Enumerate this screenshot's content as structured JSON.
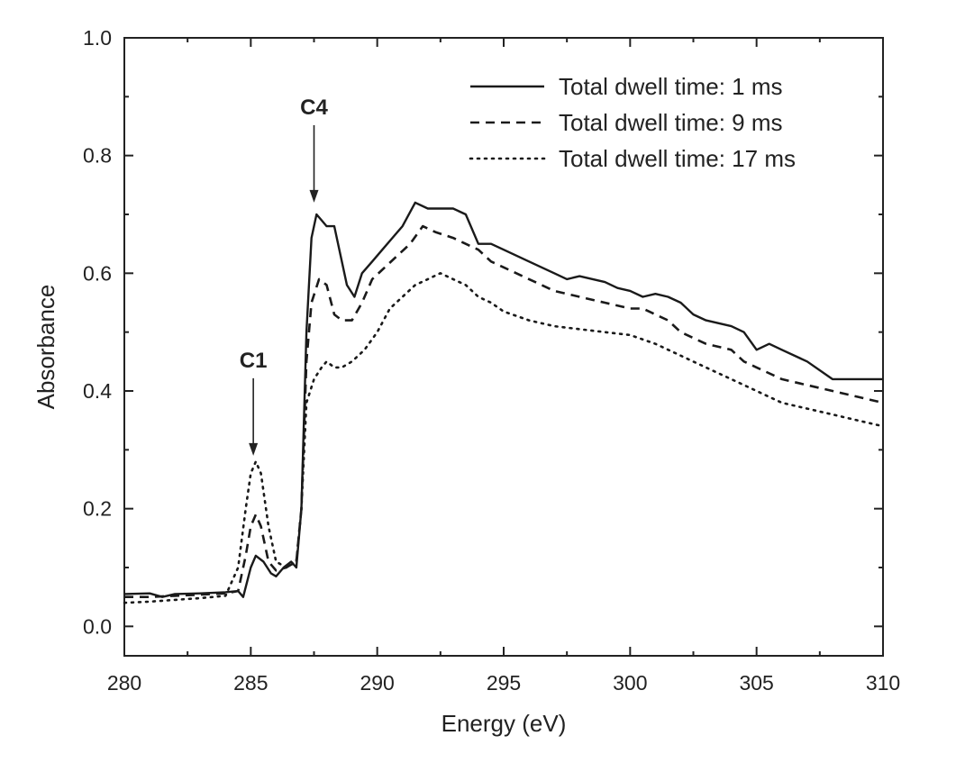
{
  "chart_data": {
    "type": "line",
    "xlabel": "Energy (eV)",
    "ylabel": "Absorbance",
    "xlim": [
      280,
      310
    ],
    "ylim": [
      -0.05,
      1.0
    ],
    "x_ticks": [
      280,
      285,
      290,
      295,
      300,
      305,
      310
    ],
    "y_ticks": [
      0.0,
      0.2,
      0.4,
      0.6,
      0.8,
      1.0
    ],
    "x_tick_labels": [
      "280",
      "285",
      "290",
      "295",
      "300",
      "305",
      "310"
    ],
    "y_tick_labels": [
      "0.0",
      "0.2",
      "0.4",
      "0.6",
      "0.8",
      "1.0"
    ],
    "legend_position": "top-right",
    "grid": false,
    "series": [
      {
        "name": "Total dwell time: 1 ms",
        "style": "solid",
        "points": [
          [
            280,
            0.055
          ],
          [
            281,
            0.056
          ],
          [
            281.5,
            0.05
          ],
          [
            282,
            0.055
          ],
          [
            283,
            0.056
          ],
          [
            284,
            0.058
          ],
          [
            284.5,
            0.06
          ],
          [
            284.7,
            0.05
          ],
          [
            285,
            0.1
          ],
          [
            285.2,
            0.12
          ],
          [
            285.5,
            0.11
          ],
          [
            285.8,
            0.09
          ],
          [
            286,
            0.085
          ],
          [
            286.3,
            0.1
          ],
          [
            286.6,
            0.11
          ],
          [
            286.8,
            0.1
          ],
          [
            287,
            0.2
          ],
          [
            287.2,
            0.5
          ],
          [
            287.4,
            0.66
          ],
          [
            287.6,
            0.7
          ],
          [
            287.8,
            0.69
          ],
          [
            288,
            0.68
          ],
          [
            288.3,
            0.68
          ],
          [
            288.5,
            0.64
          ],
          [
            288.8,
            0.58
          ],
          [
            289.1,
            0.56
          ],
          [
            289.4,
            0.6
          ],
          [
            289.8,
            0.62
          ],
          [
            290.2,
            0.64
          ],
          [
            290.6,
            0.66
          ],
          [
            291,
            0.68
          ],
          [
            291.5,
            0.72
          ],
          [
            292,
            0.71
          ],
          [
            292.5,
            0.71
          ],
          [
            293,
            0.71
          ],
          [
            293.5,
            0.7
          ],
          [
            293.8,
            0.67
          ],
          [
            294,
            0.65
          ],
          [
            294.5,
            0.65
          ],
          [
            295,
            0.64
          ],
          [
            296,
            0.62
          ],
          [
            297,
            0.6
          ],
          [
            297.5,
            0.59
          ],
          [
            298,
            0.595
          ],
          [
            299,
            0.585
          ],
          [
            299.5,
            0.575
          ],
          [
            300,
            0.57
          ],
          [
            300.5,
            0.56
          ],
          [
            301,
            0.565
          ],
          [
            301.5,
            0.56
          ],
          [
            302,
            0.55
          ],
          [
            302.5,
            0.53
          ],
          [
            303,
            0.52
          ],
          [
            304,
            0.51
          ],
          [
            304.5,
            0.5
          ],
          [
            305,
            0.47
          ],
          [
            305.5,
            0.48
          ],
          [
            306,
            0.47
          ],
          [
            307,
            0.45
          ],
          [
            308,
            0.42
          ],
          [
            309,
            0.42
          ],
          [
            310,
            0.42
          ]
        ]
      },
      {
        "name": "Total dwell time: 9 ms",
        "style": "dashed",
        "points": [
          [
            280,
            0.05
          ],
          [
            281,
            0.05
          ],
          [
            282,
            0.052
          ],
          [
            283,
            0.054
          ],
          [
            284,
            0.056
          ],
          [
            284.5,
            0.06
          ],
          [
            284.8,
            0.12
          ],
          [
            285,
            0.17
          ],
          [
            285.2,
            0.19
          ],
          [
            285.4,
            0.17
          ],
          [
            285.7,
            0.11
          ],
          [
            286,
            0.095
          ],
          [
            286.4,
            0.1
          ],
          [
            286.8,
            0.11
          ],
          [
            287,
            0.2
          ],
          [
            287.2,
            0.45
          ],
          [
            287.4,
            0.55
          ],
          [
            287.7,
            0.59
          ],
          [
            288,
            0.58
          ],
          [
            288.3,
            0.53
          ],
          [
            288.6,
            0.52
          ],
          [
            289,
            0.52
          ],
          [
            289.4,
            0.55
          ],
          [
            289.8,
            0.59
          ],
          [
            290.3,
            0.61
          ],
          [
            290.8,
            0.63
          ],
          [
            291.3,
            0.65
          ],
          [
            291.8,
            0.68
          ],
          [
            292.3,
            0.67
          ],
          [
            293,
            0.66
          ],
          [
            293.5,
            0.65
          ],
          [
            294,
            0.64
          ],
          [
            294.5,
            0.62
          ],
          [
            295,
            0.61
          ],
          [
            296,
            0.59
          ],
          [
            297,
            0.57
          ],
          [
            298,
            0.56
          ],
          [
            299,
            0.55
          ],
          [
            300,
            0.54
          ],
          [
            300.5,
            0.54
          ],
          [
            301,
            0.53
          ],
          [
            301.5,
            0.52
          ],
          [
            302,
            0.5
          ],
          [
            303,
            0.48
          ],
          [
            304,
            0.47
          ],
          [
            304.5,
            0.45
          ],
          [
            305,
            0.44
          ],
          [
            306,
            0.42
          ],
          [
            307,
            0.41
          ],
          [
            308,
            0.4
          ],
          [
            309,
            0.39
          ],
          [
            310,
            0.38
          ]
        ]
      },
      {
        "name": "Total dwell time: 17 ms",
        "style": "dotted",
        "points": [
          [
            280,
            0.04
          ],
          [
            281,
            0.042
          ],
          [
            282,
            0.045
          ],
          [
            283,
            0.048
          ],
          [
            284,
            0.052
          ],
          [
            284.5,
            0.1
          ],
          [
            284.8,
            0.2
          ],
          [
            285,
            0.26
          ],
          [
            285.2,
            0.28
          ],
          [
            285.4,
            0.26
          ],
          [
            285.7,
            0.17
          ],
          [
            286,
            0.11
          ],
          [
            286.4,
            0.1
          ],
          [
            286.8,
            0.11
          ],
          [
            287,
            0.2
          ],
          [
            287.2,
            0.38
          ],
          [
            287.5,
            0.42
          ],
          [
            287.8,
            0.44
          ],
          [
            288,
            0.45
          ],
          [
            288.3,
            0.44
          ],
          [
            288.6,
            0.44
          ],
          [
            289,
            0.45
          ],
          [
            289.5,
            0.47
          ],
          [
            290,
            0.5
          ],
          [
            290.5,
            0.54
          ],
          [
            291,
            0.56
          ],
          [
            291.5,
            0.58
          ],
          [
            292,
            0.59
          ],
          [
            292.5,
            0.6
          ],
          [
            293,
            0.59
          ],
          [
            293.5,
            0.58
          ],
          [
            294,
            0.56
          ],
          [
            294.5,
            0.55
          ],
          [
            295,
            0.535
          ],
          [
            296,
            0.52
          ],
          [
            297,
            0.51
          ],
          [
            298,
            0.505
          ],
          [
            299,
            0.5
          ],
          [
            300,
            0.495
          ],
          [
            301,
            0.48
          ],
          [
            302,
            0.46
          ],
          [
            303,
            0.44
          ],
          [
            304,
            0.42
          ],
          [
            305,
            0.4
          ],
          [
            306,
            0.38
          ],
          [
            307,
            0.37
          ],
          [
            308,
            0.36
          ],
          [
            309,
            0.35
          ],
          [
            310,
            0.34
          ]
        ]
      }
    ],
    "annotations": [
      {
        "text": "C1",
        "x": 285.1,
        "y": 0.29
      },
      {
        "text": "C4",
        "x": 287.5,
        "y": 0.72
      }
    ]
  }
}
